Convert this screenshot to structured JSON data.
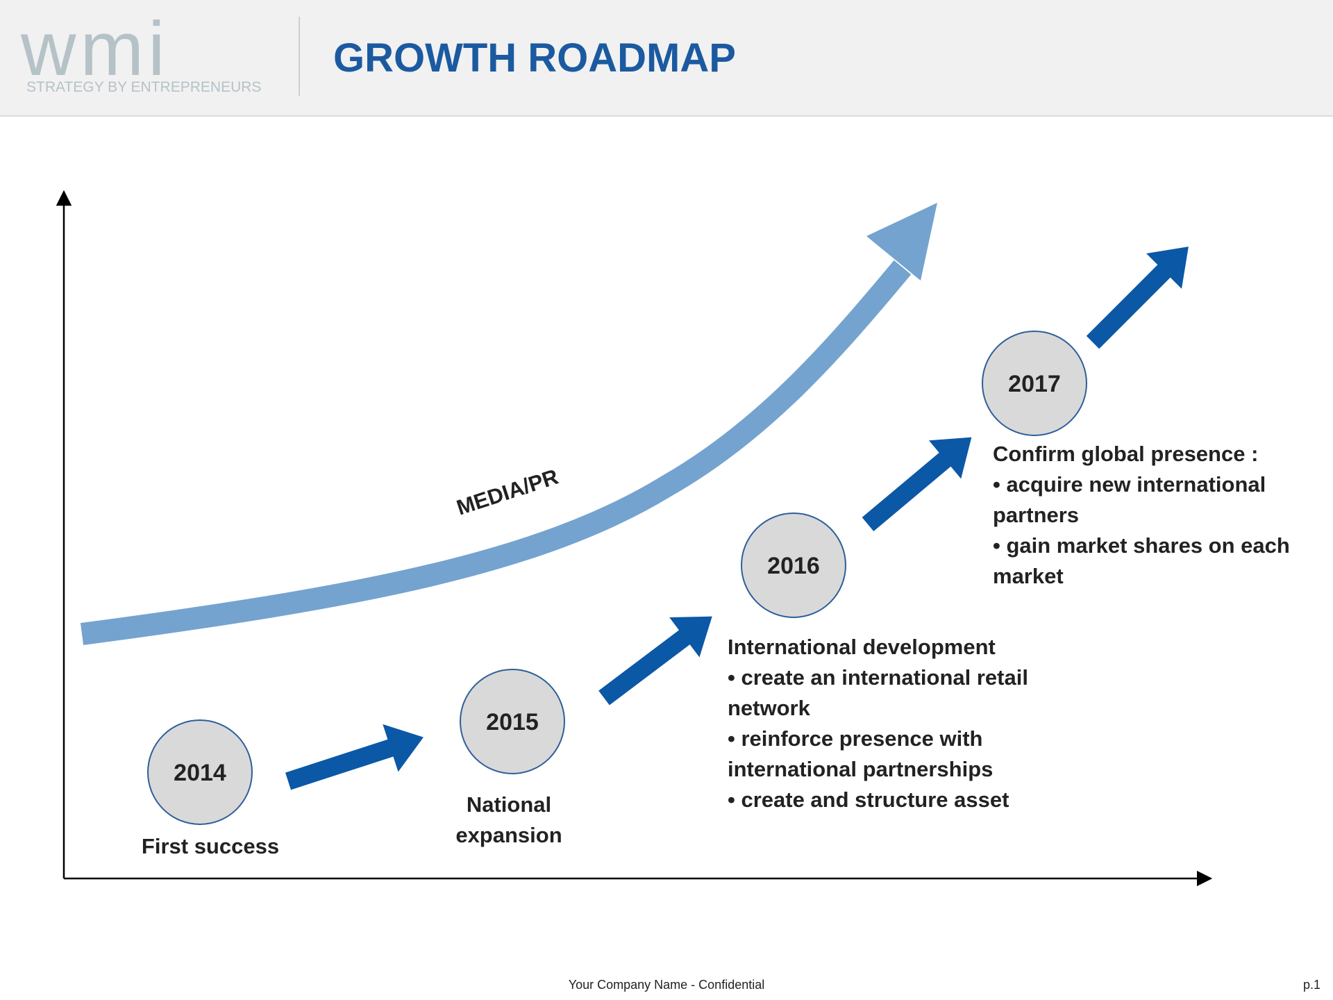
{
  "header": {
    "logo_text": "wmi",
    "logo_tagline": "STRATEGY BY ENTREPRENEURS",
    "title": "GROWTH ROADMAP"
  },
  "colors": {
    "title": "#1b5aa0",
    "step_arrow": "#0b58a6",
    "media_arrow": "#74a3cf",
    "node_fill": "#d9d9d9",
    "node_border": "#2e5e9a",
    "logo": "#b5c2c8"
  },
  "diagram": {
    "media_label": "MEDIA/PR",
    "milestones": [
      {
        "year": "2014",
        "title": "First success",
        "bullets": []
      },
      {
        "year": "2015",
        "title": "National expansion",
        "bullets": []
      },
      {
        "year": "2016",
        "title": "International development",
        "bullets": [
          "• create an international retail network",
          "• reinforce presence with international partnerships",
          "• create and structure asset"
        ]
      },
      {
        "year": "2017",
        "title": "Confirm global presence :",
        "bullets": [
          "• acquire new international partners",
          "• gain market shares on each market"
        ]
      }
    ]
  },
  "footer": {
    "confidential": "Your Company Name - Confidential",
    "page_number": "p.1"
  }
}
